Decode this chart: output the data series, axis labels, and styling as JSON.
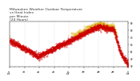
{
  "title_line1": "Milwaukee Weather Outdoor Temperature",
  "title_line2": "vs Heat Index",
  "title_line3": "per Minute",
  "title_line4": "(24 Hours)",
  "title_fontsize": 3.2,
  "title_color": "#333333",
  "title2_color": "#cc8800",
  "bg_color": "#ffffff",
  "plot_bg_color": "#ffffff",
  "grid_color": "#999999",
  "line1_color": "#cc0000",
  "line2_color": "#ddaa00",
  "tick_fontsize": 2.0,
  "ylim": [
    28,
    92
  ],
  "xlim": [
    0,
    1440
  ],
  "yticks": [
    30,
    40,
    50,
    60,
    70,
    80,
    90
  ],
  "num_points": 1440,
  "vgrid_positions": [
    0,
    180,
    360,
    540,
    720,
    900,
    1080,
    1260,
    1440
  ]
}
